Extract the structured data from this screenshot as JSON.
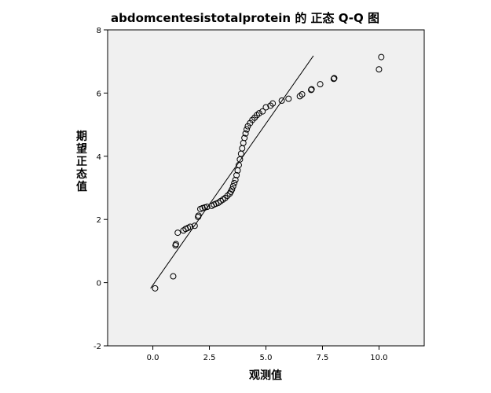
{
  "chart_data": {
    "type": "scatter",
    "title": "abdomcentesistotalprotein 的 正态 Q-Q 图",
    "xlabel": "观测值",
    "ylabel": "期望正态值",
    "xlim": [
      -2.0,
      12.0
    ],
    "ylim": [
      -2,
      8
    ],
    "x_ticks": [
      0.0,
      2.5,
      5.0,
      7.5,
      10.0
    ],
    "x_tick_labels": [
      "0.0",
      "2.5",
      "5.0",
      "7.5",
      "10.0"
    ],
    "y_ticks": [
      -2,
      0,
      2,
      4,
      6,
      8
    ],
    "y_tick_labels": [
      "-2",
      "0",
      "2",
      "4",
      "6",
      "8"
    ],
    "plot_background": "#f0f0f0",
    "marker": "hollow-circle",
    "grid": false,
    "reference_line": {
      "x": [
        -0.1,
        7.1
      ],
      "y": [
        -0.18,
        7.18
      ]
    },
    "points": [
      [
        0.1,
        -0.18
      ],
      [
        0.9,
        0.2
      ],
      [
        1.0,
        1.18
      ],
      [
        1.02,
        1.22
      ],
      [
        1.1,
        1.58
      ],
      [
        1.35,
        1.65
      ],
      [
        1.45,
        1.7
      ],
      [
        1.55,
        1.73
      ],
      [
        1.65,
        1.77
      ],
      [
        1.85,
        1.8
      ],
      [
        2.0,
        2.08
      ],
      [
        2.02,
        2.12
      ],
      [
        2.1,
        2.33
      ],
      [
        2.2,
        2.36
      ],
      [
        2.3,
        2.38
      ],
      [
        2.4,
        2.4
      ],
      [
        2.6,
        2.43
      ],
      [
        2.7,
        2.47
      ],
      [
        2.8,
        2.5
      ],
      [
        2.9,
        2.53
      ],
      [
        3.0,
        2.58
      ],
      [
        3.1,
        2.63
      ],
      [
        3.2,
        2.68
      ],
      [
        3.3,
        2.75
      ],
      [
        3.4,
        2.82
      ],
      [
        3.45,
        2.88
      ],
      [
        3.5,
        2.95
      ],
      [
        3.55,
        3.05
      ],
      [
        3.6,
        3.15
      ],
      [
        3.65,
        3.25
      ],
      [
        3.7,
        3.4
      ],
      [
        3.75,
        3.55
      ],
      [
        3.8,
        3.72
      ],
      [
        3.85,
        3.9
      ],
      [
        3.9,
        4.08
      ],
      [
        3.95,
        4.25
      ],
      [
        4.0,
        4.42
      ],
      [
        4.05,
        4.58
      ],
      [
        4.1,
        4.72
      ],
      [
        4.15,
        4.85
      ],
      [
        4.2,
        4.95
      ],
      [
        4.3,
        5.05
      ],
      [
        4.4,
        5.15
      ],
      [
        4.5,
        5.22
      ],
      [
        4.6,
        5.3
      ],
      [
        4.7,
        5.36
      ],
      [
        4.85,
        5.42
      ],
      [
        5.0,
        5.55
      ],
      [
        5.2,
        5.6
      ],
      [
        5.3,
        5.67
      ],
      [
        5.7,
        5.76
      ],
      [
        6.0,
        5.82
      ],
      [
        6.5,
        5.9
      ],
      [
        6.6,
        5.96
      ],
      [
        7.0,
        6.1
      ],
      [
        7.02,
        6.12
      ],
      [
        7.4,
        6.28
      ],
      [
        8.0,
        6.45
      ],
      [
        8.02,
        6.47
      ],
      [
        10.0,
        6.75
      ],
      [
        10.1,
        7.14
      ]
    ]
  }
}
